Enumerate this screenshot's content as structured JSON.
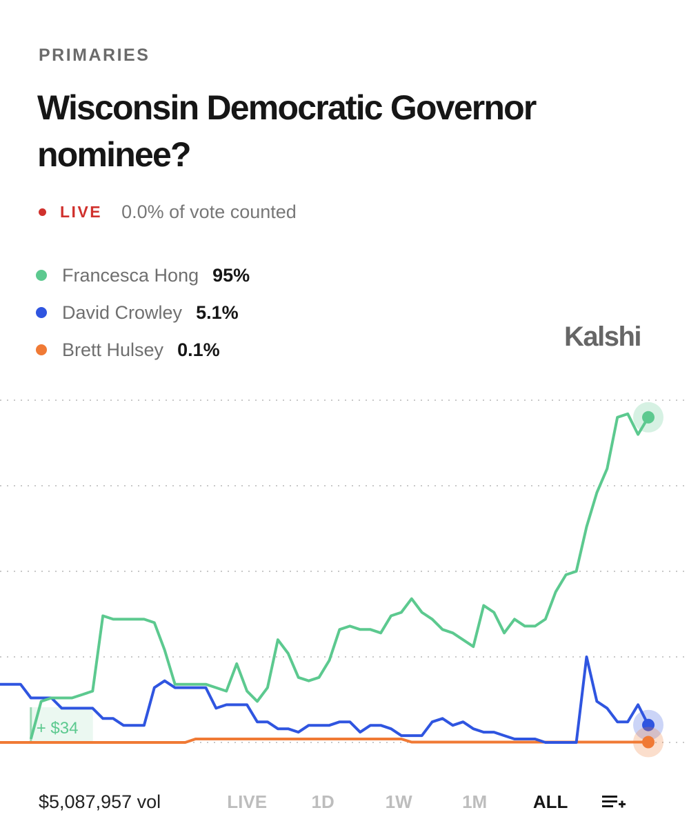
{
  "chart_data": {
    "type": "line",
    "section": "PRIMARIES",
    "title": "Wisconsin Democratic Governor nominee?",
    "live": "LIVE",
    "status": "0.0% of vote counted",
    "brand": "Kalshi",
    "annotation": "+ $34",
    "volume": "$5,087,957 vol",
    "ranges": [
      "LIVE",
      "1D",
      "1W",
      "1M",
      "ALL"
    ],
    "selected_range": 4,
    "ylim": [
      0,
      100
    ],
    "yticks": [
      0,
      25,
      50,
      75,
      100
    ],
    "grid": true,
    "series": [
      {
        "name": "Francesca Hong",
        "color": "#5cc98f",
        "current_label": "95%",
        "values": [
          null,
          null,
          null,
          1,
          12,
          13,
          13,
          13,
          14,
          15,
          37,
          36,
          36,
          36,
          36,
          35,
          27,
          17,
          17,
          17,
          17,
          16,
          15,
          23,
          15,
          12,
          16,
          30,
          26,
          19,
          18,
          19,
          24,
          33,
          34,
          33,
          33,
          32,
          37,
          38,
          42,
          38,
          36,
          33,
          32,
          30,
          28,
          40,
          38,
          32,
          36,
          34,
          34,
          36,
          44,
          49,
          50,
          63,
          73,
          80,
          95,
          96,
          90,
          95
        ]
      },
      {
        "name": "David Crowley",
        "color": "#2f55e0",
        "current_label": "5.1%",
        "values": [
          17,
          17,
          17,
          13,
          13,
          13,
          10,
          10,
          10,
          10,
          7,
          7,
          5,
          5,
          5,
          16,
          18,
          16,
          16,
          16,
          16,
          10,
          11,
          11,
          11,
          6,
          6,
          4,
          4,
          3,
          5,
          5,
          5,
          6,
          6,
          3,
          5,
          5,
          4,
          2,
          2,
          2,
          6,
          7,
          5,
          6,
          4,
          3,
          3,
          2,
          1,
          1,
          1,
          0,
          0,
          0,
          0,
          25,
          12,
          10,
          6,
          6,
          11,
          5.1
        ]
      },
      {
        "name": "Brett Hulsey",
        "color": "#f07a35",
        "current_label": "0.1%",
        "values": [
          0,
          0,
          0,
          0,
          0,
          0,
          0,
          0,
          0,
          0,
          0,
          0,
          0,
          0,
          0,
          0,
          0,
          0,
          0,
          1,
          1,
          1,
          1,
          1,
          1,
          1,
          1,
          1,
          1,
          1,
          1,
          1,
          1,
          1,
          1,
          1,
          1,
          1,
          1,
          1,
          0.1,
          0.1,
          0.1,
          0.1,
          0.1,
          0.1,
          0.1,
          0.1,
          0.1,
          0.1,
          0.1,
          0.1,
          0.1,
          0.1,
          0.1,
          0.1,
          0.1,
          0.1,
          0.1,
          0.1,
          0.1,
          0.1,
          0.1,
          0.1
        ]
      }
    ]
  }
}
